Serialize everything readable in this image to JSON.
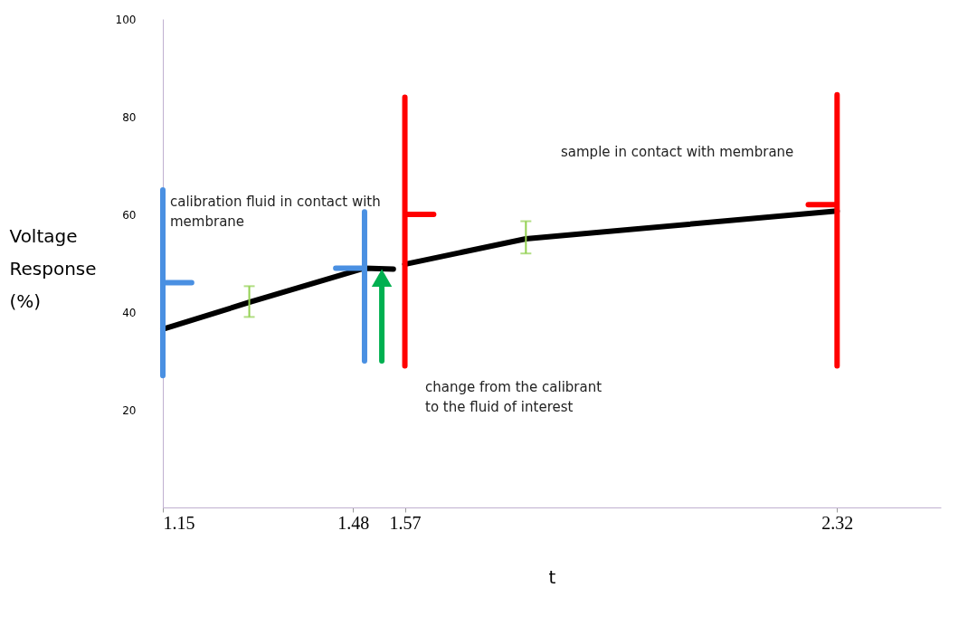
{
  "chart_data": {
    "type": "line",
    "xlabel": "t",
    "ylabel": "Voltage Response (%)",
    "xlim": [
      1.15,
      2.5
    ],
    "xticks": [
      1.15,
      1.48,
      1.57,
      2.32
    ],
    "ylim": [
      0,
      100
    ],
    "yticks": [
      20,
      40,
      60,
      80,
      100
    ],
    "grid": false,
    "series": [
      {
        "color": "#000000",
        "x": [
          1.15,
          1.3,
          1.5,
          1.55,
          1.56,
          1.57,
          1.78,
          2.32
        ],
        "values": [
          36.5,
          42,
          49,
          48.8,
          null,
          49.8,
          55,
          60.7
        ],
        "errors": [
          null,
          [
            39,
            45.3
          ],
          null,
          null,
          null,
          null,
          [
            52,
            58.6
          ],
          null
        ]
      },
      {
        "color": "#4a90e2",
        "x": [
          1.15,
          1.15,
          1.2,
          1.15,
          1.15
        ],
        "values": [
          27,
          46,
          46,
          46,
          65
        ]
      },
      {
        "color": "#4a90e2",
        "x": [
          1.5,
          1.5,
          1.45,
          1.5,
          1.5
        ],
        "values": [
          30,
          49,
          49,
          49,
          60.5
        ]
      },
      {
        "color": "#ff0000",
        "x": [
          1.57,
          1.57,
          1.62,
          1.57,
          1.57
        ],
        "values": [
          29,
          60,
          60,
          60,
          84
        ]
      },
      {
        "color": "#ff0000",
        "x": [
          2.32,
          2.32,
          2.27,
          2.32,
          2.32
        ],
        "values": [
          29,
          62,
          62,
          62,
          84.5
        ]
      },
      {
        "color": "#00b050",
        "marker": "triangle",
        "x": [
          1.53,
          1.53
        ],
        "values": [
          30,
          47
        ]
      }
    ],
    "annotations": [
      "calibration fluid in contact with\nmembrane",
      "change from the  calibrant\nto the fluid of interest",
      "sample in contact with membrane"
    ]
  }
}
